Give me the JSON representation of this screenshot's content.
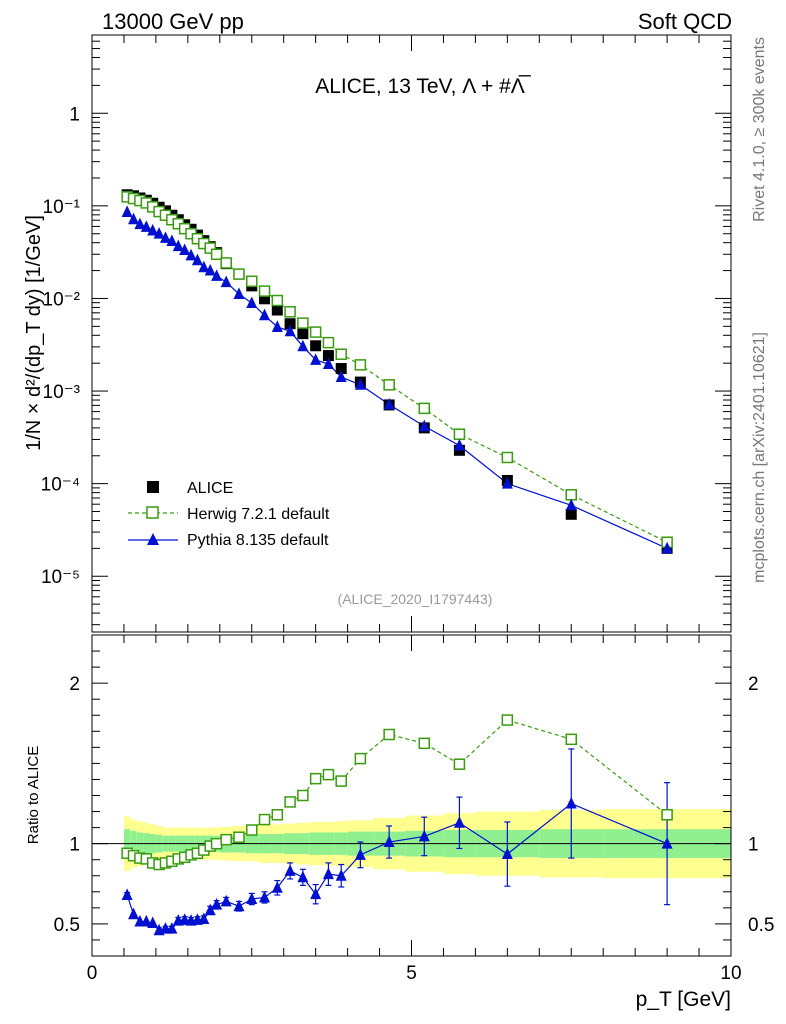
{
  "header": {
    "left_label": "13000 GeV pp",
    "right_label": "Soft QCD"
  },
  "side_labels": {
    "version": "Rivet 4.1.0, ≥ 300k events",
    "source": "mcplots.cern.ch [arXiv:2401.10621]"
  },
  "chart_data": [
    {
      "type": "scatter",
      "title": "ALICE, 13 TeV, Λ + #Λ̅",
      "analysis_tag": "(ALICE_2020_I1797443)",
      "xlabel": "p_T [GeV]",
      "ylabel": "1/N × d²/(dp_T dy) [1/GeV]",
      "xlim": [
        0,
        10
      ],
      "ylim": [
        2.5e-06,
        7
      ],
      "yscale": "log",
      "y_tick_labels": [
        "10⁻⁵",
        "10⁻⁴",
        "10⁻³",
        "10⁻²",
        "10⁻¹",
        "1"
      ],
      "y_tick_values": [
        1e-05,
        0.0001,
        0.001,
        0.01,
        0.1,
        1
      ],
      "legend_position": "bottom-left",
      "x": [
        0.55,
        0.65,
        0.75,
        0.85,
        0.95,
        1.05,
        1.15,
        1.25,
        1.35,
        1.45,
        1.55,
        1.65,
        1.75,
        1.85,
        1.95,
        2.1,
        2.3,
        2.5,
        2.7,
        2.9,
        3.1,
        3.3,
        3.5,
        3.7,
        3.9,
        4.2,
        4.65,
        5.2,
        5.75,
        6.5,
        7.5,
        9.0
      ],
      "series": [
        {
          "name": "ALICE",
          "style": "data",
          "color": "#000000",
          "values": [
            0.1317,
            0.1283,
            0.1217,
            0.115,
            0.1067,
            0.09667,
            0.08833,
            0.07917,
            0.07083,
            0.0625,
            0.05583,
            0.04833,
            0.04208,
            0.03625,
            0.03125,
            0.02375,
            0.01833,
            0.01367,
            0.009917,
            0.0075,
            0.005333,
            0.004167,
            0.003083,
            0.002417,
            0.00175,
            0.00125,
            0.0007083,
            0.0004,
            0.0002292,
            0.0001083,
            4.667e-05,
            2e-05
          ]
        },
        {
          "name": "Herwig 7.2.1 default",
          "style": "dashed-open-square",
          "color": "#3a9a10",
          "values": [
            0.125,
            0.12,
            0.114,
            0.1075,
            0.0975,
            0.08667,
            0.07917,
            0.07083,
            0.06417,
            0.05667,
            0.05,
            0.04417,
            0.03917,
            0.035,
            0.03,
            0.02417,
            0.01833,
            0.01533,
            0.012,
            0.0095,
            0.00717,
            0.005417,
            0.004333,
            0.003333,
            0.0025,
            0.001917,
            0.001167,
            0.00065,
            0.000342,
            0.0001917,
            7.583e-05,
            2.33e-05
          ]
        },
        {
          "name": "Pythia 8.135 default",
          "style": "solid-filled-triangle",
          "color": "#0010d0",
          "values": [
            0.08583,
            0.07167,
            0.06333,
            0.05917,
            0.05417,
            0.05,
            0.045,
            0.04167,
            0.03667,
            0.03333,
            0.02917,
            0.02583,
            0.02167,
            0.02,
            0.0175,
            0.015,
            0.01117,
            0.008917,
            0.006583,
            0.004917,
            0.004417,
            0.003042,
            0.002167,
            0.001958,
            0.001417,
            0.001167,
            0.0007167,
            0.0004167,
            0.0002583,
            0.0001,
            5.833e-05,
            2e-05
          ]
        }
      ]
    },
    {
      "type": "scatter",
      "title": "",
      "xlabel": "p_T [GeV]",
      "ylabel": "Ratio to ALICE",
      "xlim": [
        0,
        10
      ],
      "ylim": [
        0.3,
        2.3
      ],
      "x_tick_labels": [
        "0",
        "5",
        "10"
      ],
      "x_tick_values": [
        0,
        5,
        10
      ],
      "y_tick_labels": [
        "0.5",
        "1",
        "2"
      ],
      "y_tick_values": [
        0.5,
        1,
        2
      ],
      "reference_line": 1,
      "uncertainty_bands": {
        "edges": [
          0.5,
          0.6,
          0.7,
          0.8,
          0.9,
          1.0,
          1.1,
          1.2,
          1.3,
          1.4,
          1.5,
          1.6,
          1.7,
          1.8,
          1.9,
          2.0,
          2.2,
          2.4,
          2.6,
          2.8,
          3.0,
          3.2,
          3.4,
          3.6,
          3.8,
          4.0,
          4.4,
          4.9,
          5.5,
          6.0,
          7.0,
          8.0,
          10.0
        ],
        "inner": [
          0.9,
          0.8,
          0.7,
          0.65,
          0.6,
          0.55,
          0.5,
          0.5,
          0.5,
          0.5,
          0.5,
          0.5,
          0.5,
          0.5,
          0.5,
          0.55,
          0.55,
          0.6,
          0.6,
          0.6,
          0.65,
          0.65,
          0.7,
          0.7,
          0.7,
          0.75,
          0.75,
          0.8,
          0.85,
          0.85,
          0.9,
          0.9
        ],
        "outer": [
          1.7,
          1.5,
          1.4,
          1.3,
          1.2,
          1.1,
          1.0,
          1.0,
          1.0,
          1.0,
          1.0,
          1.0,
          1.0,
          1.0,
          1.0,
          1.05,
          1.1,
          1.1,
          1.2,
          1.2,
          1.25,
          1.3,
          1.35,
          1.35,
          1.4,
          1.45,
          1.6,
          1.75,
          1.9,
          2.0,
          2.1,
          2.15
        ],
        "color_inner": "#90f090",
        "color_outer": "#ffff90",
        "scale": 0.1
      },
      "series": [
        {
          "name": "Herwig 7.2.1 default",
          "style": "dashed-open-square",
          "color": "#3a9a10",
          "values": [
            0.94,
            0.925,
            0.91,
            0.905,
            0.88,
            0.87,
            0.88,
            0.89,
            0.905,
            0.915,
            0.93,
            0.94,
            0.96,
            0.985,
            1.0,
            1.025,
            1.04,
            1.085,
            1.15,
            1.18,
            1.26,
            1.3,
            1.405,
            1.43,
            1.39,
            1.53,
            1.68,
            1.625,
            1.495,
            1.77,
            1.65,
            1.18
          ]
        },
        {
          "name": "Pythia 8.135 default",
          "style": "solid-filled-triangle",
          "color": "#0010d0",
          "values": [
            0.68,
            0.56,
            0.515,
            0.515,
            0.505,
            0.46,
            0.47,
            0.47,
            0.52,
            0.525,
            0.52,
            0.525,
            0.53,
            0.585,
            0.62,
            0.64,
            0.61,
            0.655,
            0.665,
            0.725,
            0.83,
            0.79,
            0.685,
            0.81,
            0.8,
            0.93,
            1.01,
            1.045,
            1.13,
            0.935,
            1.25,
            1.0
          ],
          "errors": [
            0.015,
            0.01,
            0.01,
            0.01,
            0.01,
            0.015,
            0.015,
            0.015,
            0.02,
            0.02,
            0.02,
            0.02,
            0.02,
            0.025,
            0.025,
            0.025,
            0.03,
            0.035,
            0.035,
            0.045,
            0.05,
            0.05,
            0.06,
            0.07,
            0.07,
            0.08,
            0.1,
            0.12,
            0.16,
            0.2,
            0.34,
            0.38
          ]
        }
      ]
    }
  ]
}
